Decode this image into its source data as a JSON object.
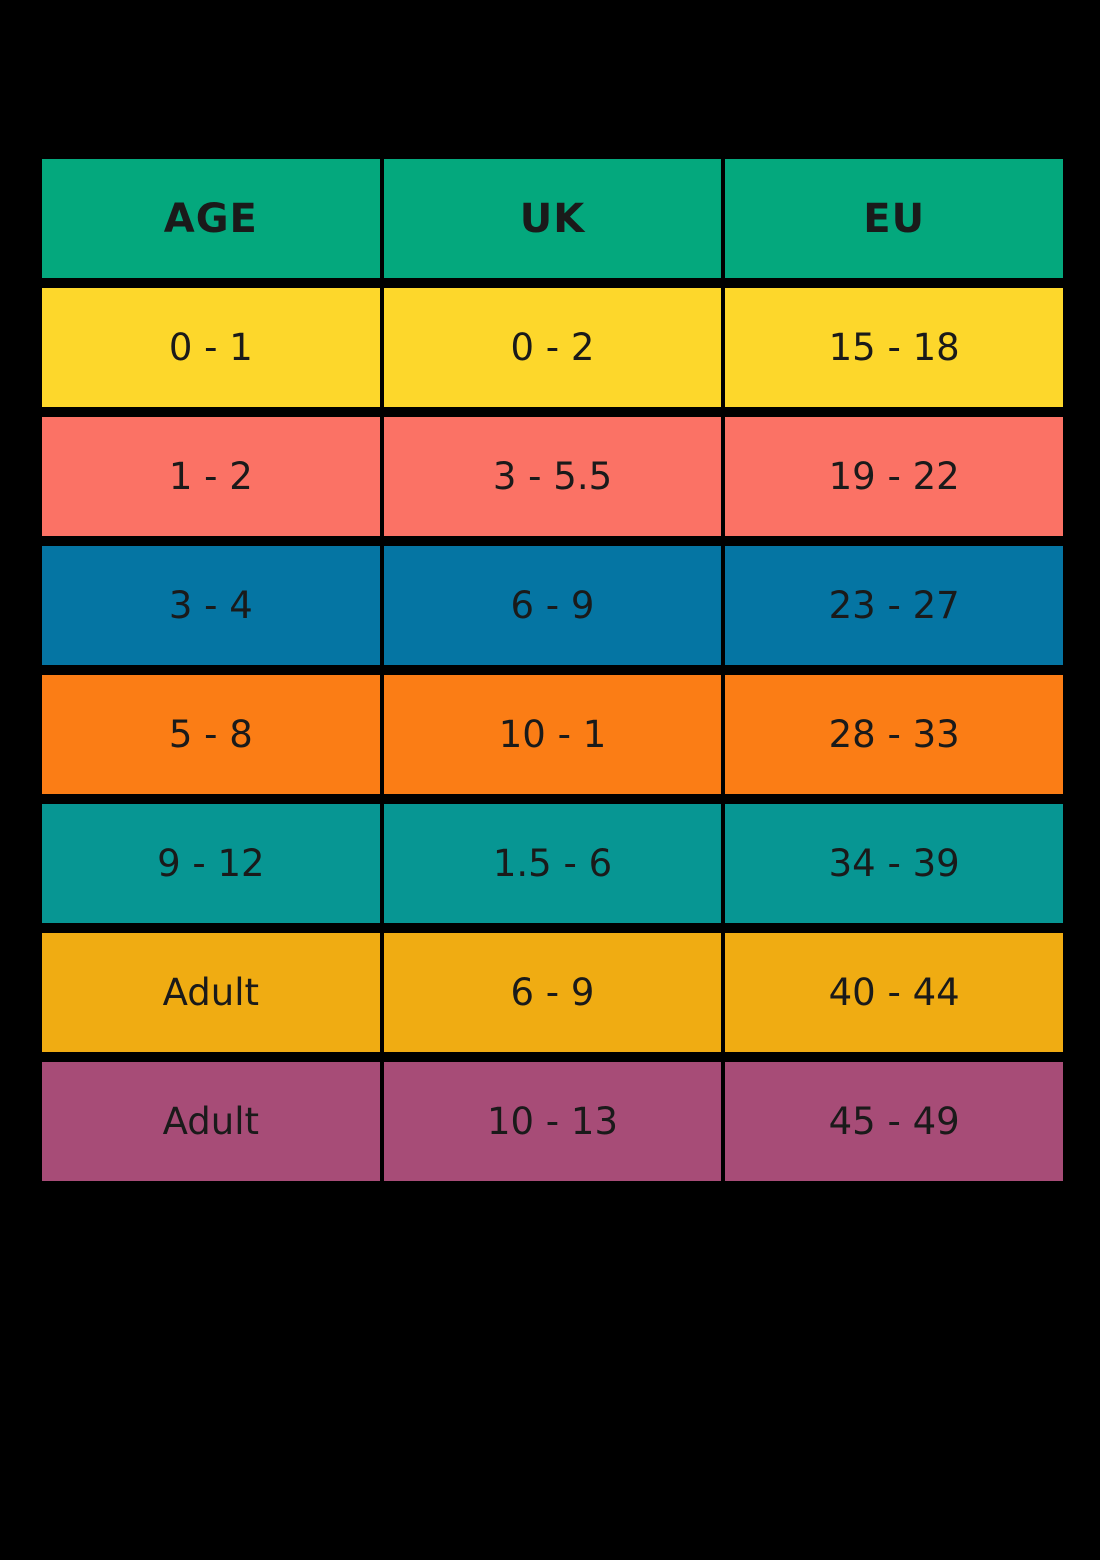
{
  "page": {
    "background": "#000000"
  },
  "chart_data": {
    "type": "table",
    "title": "",
    "columns": [
      "AGE",
      "UK",
      "EU"
    ],
    "rows": [
      {
        "cells": [
          "0 - 1",
          "0 - 2",
          "15 - 18"
        ],
        "color": "#FDD72B"
      },
      {
        "cells": [
          "1 - 2",
          "3 - 5.5",
          "19 - 22"
        ],
        "color": "#FB7265"
      },
      {
        "cells": [
          "3 - 4",
          "6 - 9",
          "23 - 27"
        ],
        "color": "#0575A3"
      },
      {
        "cells": [
          "5 - 8",
          "10 - 1",
          "28 - 33"
        ],
        "color": "#FB7D15"
      },
      {
        "cells": [
          "9 - 12",
          "1.5 - 6",
          "34 - 39"
        ],
        "color": "#079693"
      },
      {
        "cells": [
          "Adult",
          "6 - 9",
          "40 - 44"
        ],
        "color": "#F0AC12"
      },
      {
        "cells": [
          "Adult",
          "10 - 13",
          "45 - 49"
        ],
        "color": "#A74C77"
      }
    ],
    "header_color": "#04A87D",
    "text_color": "#1A1A1A",
    "background": "#000000",
    "grid_line_color": "#000000",
    "legend": "none",
    "grid": "off"
  }
}
